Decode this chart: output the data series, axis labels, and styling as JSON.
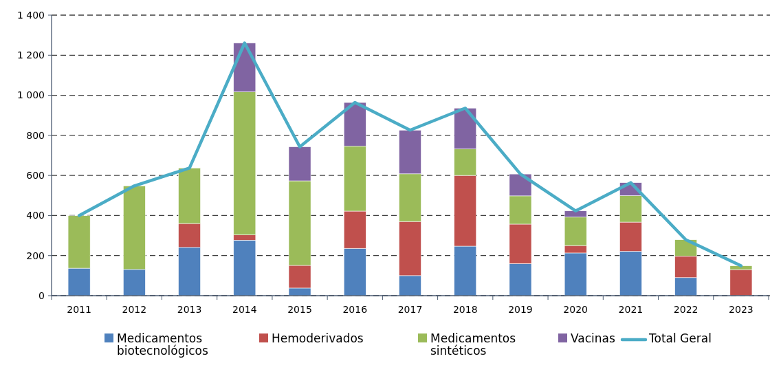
{
  "chart_data": {
    "type": "bar",
    "stacked": true,
    "categories": [
      "2011",
      "2012",
      "2013",
      "2014",
      "2015",
      "2016",
      "2017",
      "2018",
      "2019",
      "2020",
      "2021",
      "2022",
      "2023"
    ],
    "series": [
      {
        "name": "Medicamentos biotecnológicos",
        "color": "#4f81bd",
        "values": [
          137,
          131,
          241,
          277,
          38,
          236,
          100,
          247,
          160,
          213,
          221,
          90,
          null
        ]
      },
      {
        "name": "Hemoderivados",
        "color": "#c0504d",
        "values": [
          null,
          null,
          119,
          26,
          113,
          186,
          270,
          353,
          197,
          37,
          146,
          107,
          130
        ]
      },
      {
        "name": "Medicamentos sintéticos",
        "color": "#9bbb59",
        "values": [
          262,
          417,
          277,
          714,
          422,
          324,
          238,
          132,
          141,
          142,
          132,
          82,
          19
        ]
      },
      {
        "name": "Vacinas",
        "color": "#8064a2",
        "values": [
          null,
          null,
          null,
          244,
          170,
          218,
          218,
          204,
          109,
          31,
          65,
          null,
          null
        ]
      },
      {
        "name": "Total Geral",
        "type": "line",
        "color": "#4bacc6",
        "values": [
          400,
          548,
          637,
          1261,
          743,
          964,
          826,
          936,
          607,
          423,
          564,
          279,
          149
        ]
      }
    ],
    "ylim": [
      0,
      1400
    ],
    "yticks": [
      0,
      200,
      400,
      600,
      800,
      {
        "value": 1000,
        "label": "1 000"
      },
      {
        "value": 1200,
        "label": "1 200"
      },
      {
        "value": 1400,
        "label": "1 400"
      }
    ],
    "grid": "y",
    "legend": "bottom",
    "line_style": "solid",
    "marker": "none"
  }
}
